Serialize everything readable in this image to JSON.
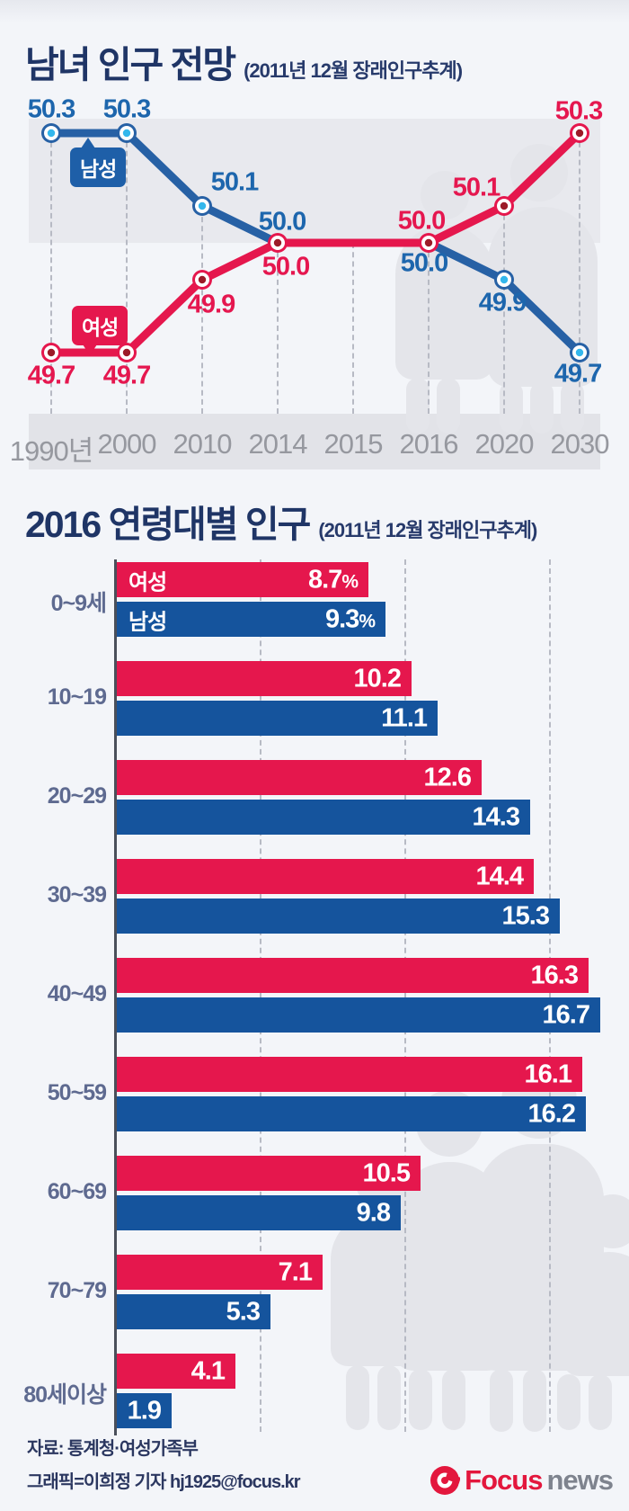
{
  "chart_data": [
    {
      "type": "line",
      "title": "남녀 인구 전망",
      "subtitle": "(2011년 12월 장래인구추계)",
      "x_labels": [
        "1990년",
        "2000",
        "2010",
        "2014",
        "2015",
        "2016",
        "2020",
        "2030"
      ],
      "ylim": [
        49.6,
        50.4
      ],
      "legend_position": "on-chart-tags",
      "grid": "dashed-vertical",
      "series": [
        {
          "name": "남성",
          "color": "#2761a5",
          "label_color": "#1d66ad",
          "marker_center": "#33b7ec",
          "x": [
            "1990년",
            "2000",
            "2010",
            "2014",
            "2016",
            "2020",
            "2030"
          ],
          "values": [
            50.3,
            50.3,
            50.1,
            50.0,
            50.0,
            49.9,
            49.7
          ]
        },
        {
          "name": "여성",
          "color": "#e5174d",
          "label_color": "#e5174f",
          "marker_center": "#9c1b28",
          "x": [
            "1990년",
            "2000",
            "2010",
            "2014",
            "2016",
            "2020",
            "2030"
          ],
          "values": [
            49.7,
            49.7,
            49.9,
            50.0,
            50.0,
            50.1,
            50.3
          ]
        }
      ]
    },
    {
      "type": "bar",
      "title": "2016 연령대별 인구",
      "subtitle": "(2011년 12월 장래인구추계)",
      "orientation": "horizontal",
      "categories": [
        "0~9세",
        "10~19",
        "20~29",
        "30~39",
        "40~49",
        "50~59",
        "60~69",
        "70~79",
        "80세이상"
      ],
      "series": [
        {
          "name": "여성",
          "color": "#e5174d",
          "values": [
            8.7,
            10.2,
            12.6,
            14.4,
            16.3,
            16.1,
            10.5,
            7.1,
            4.1
          ]
        },
        {
          "name": "남성",
          "color": "#15549d",
          "values": [
            9.3,
            11.1,
            14.3,
            15.3,
            16.7,
            16.2,
            9.8,
            5.3,
            1.9
          ]
        }
      ],
      "suffix_first_row": "%",
      "gridlines": [
        5,
        10,
        15
      ],
      "xlim": [
        0,
        18
      ]
    }
  ],
  "footer": {
    "source": "자료: 통계청·여성가족부",
    "credit": "그래픽=이희정 기자 hj1925@focus.kr",
    "logo": {
      "brand": "Focus",
      "suffix": "news"
    }
  }
}
